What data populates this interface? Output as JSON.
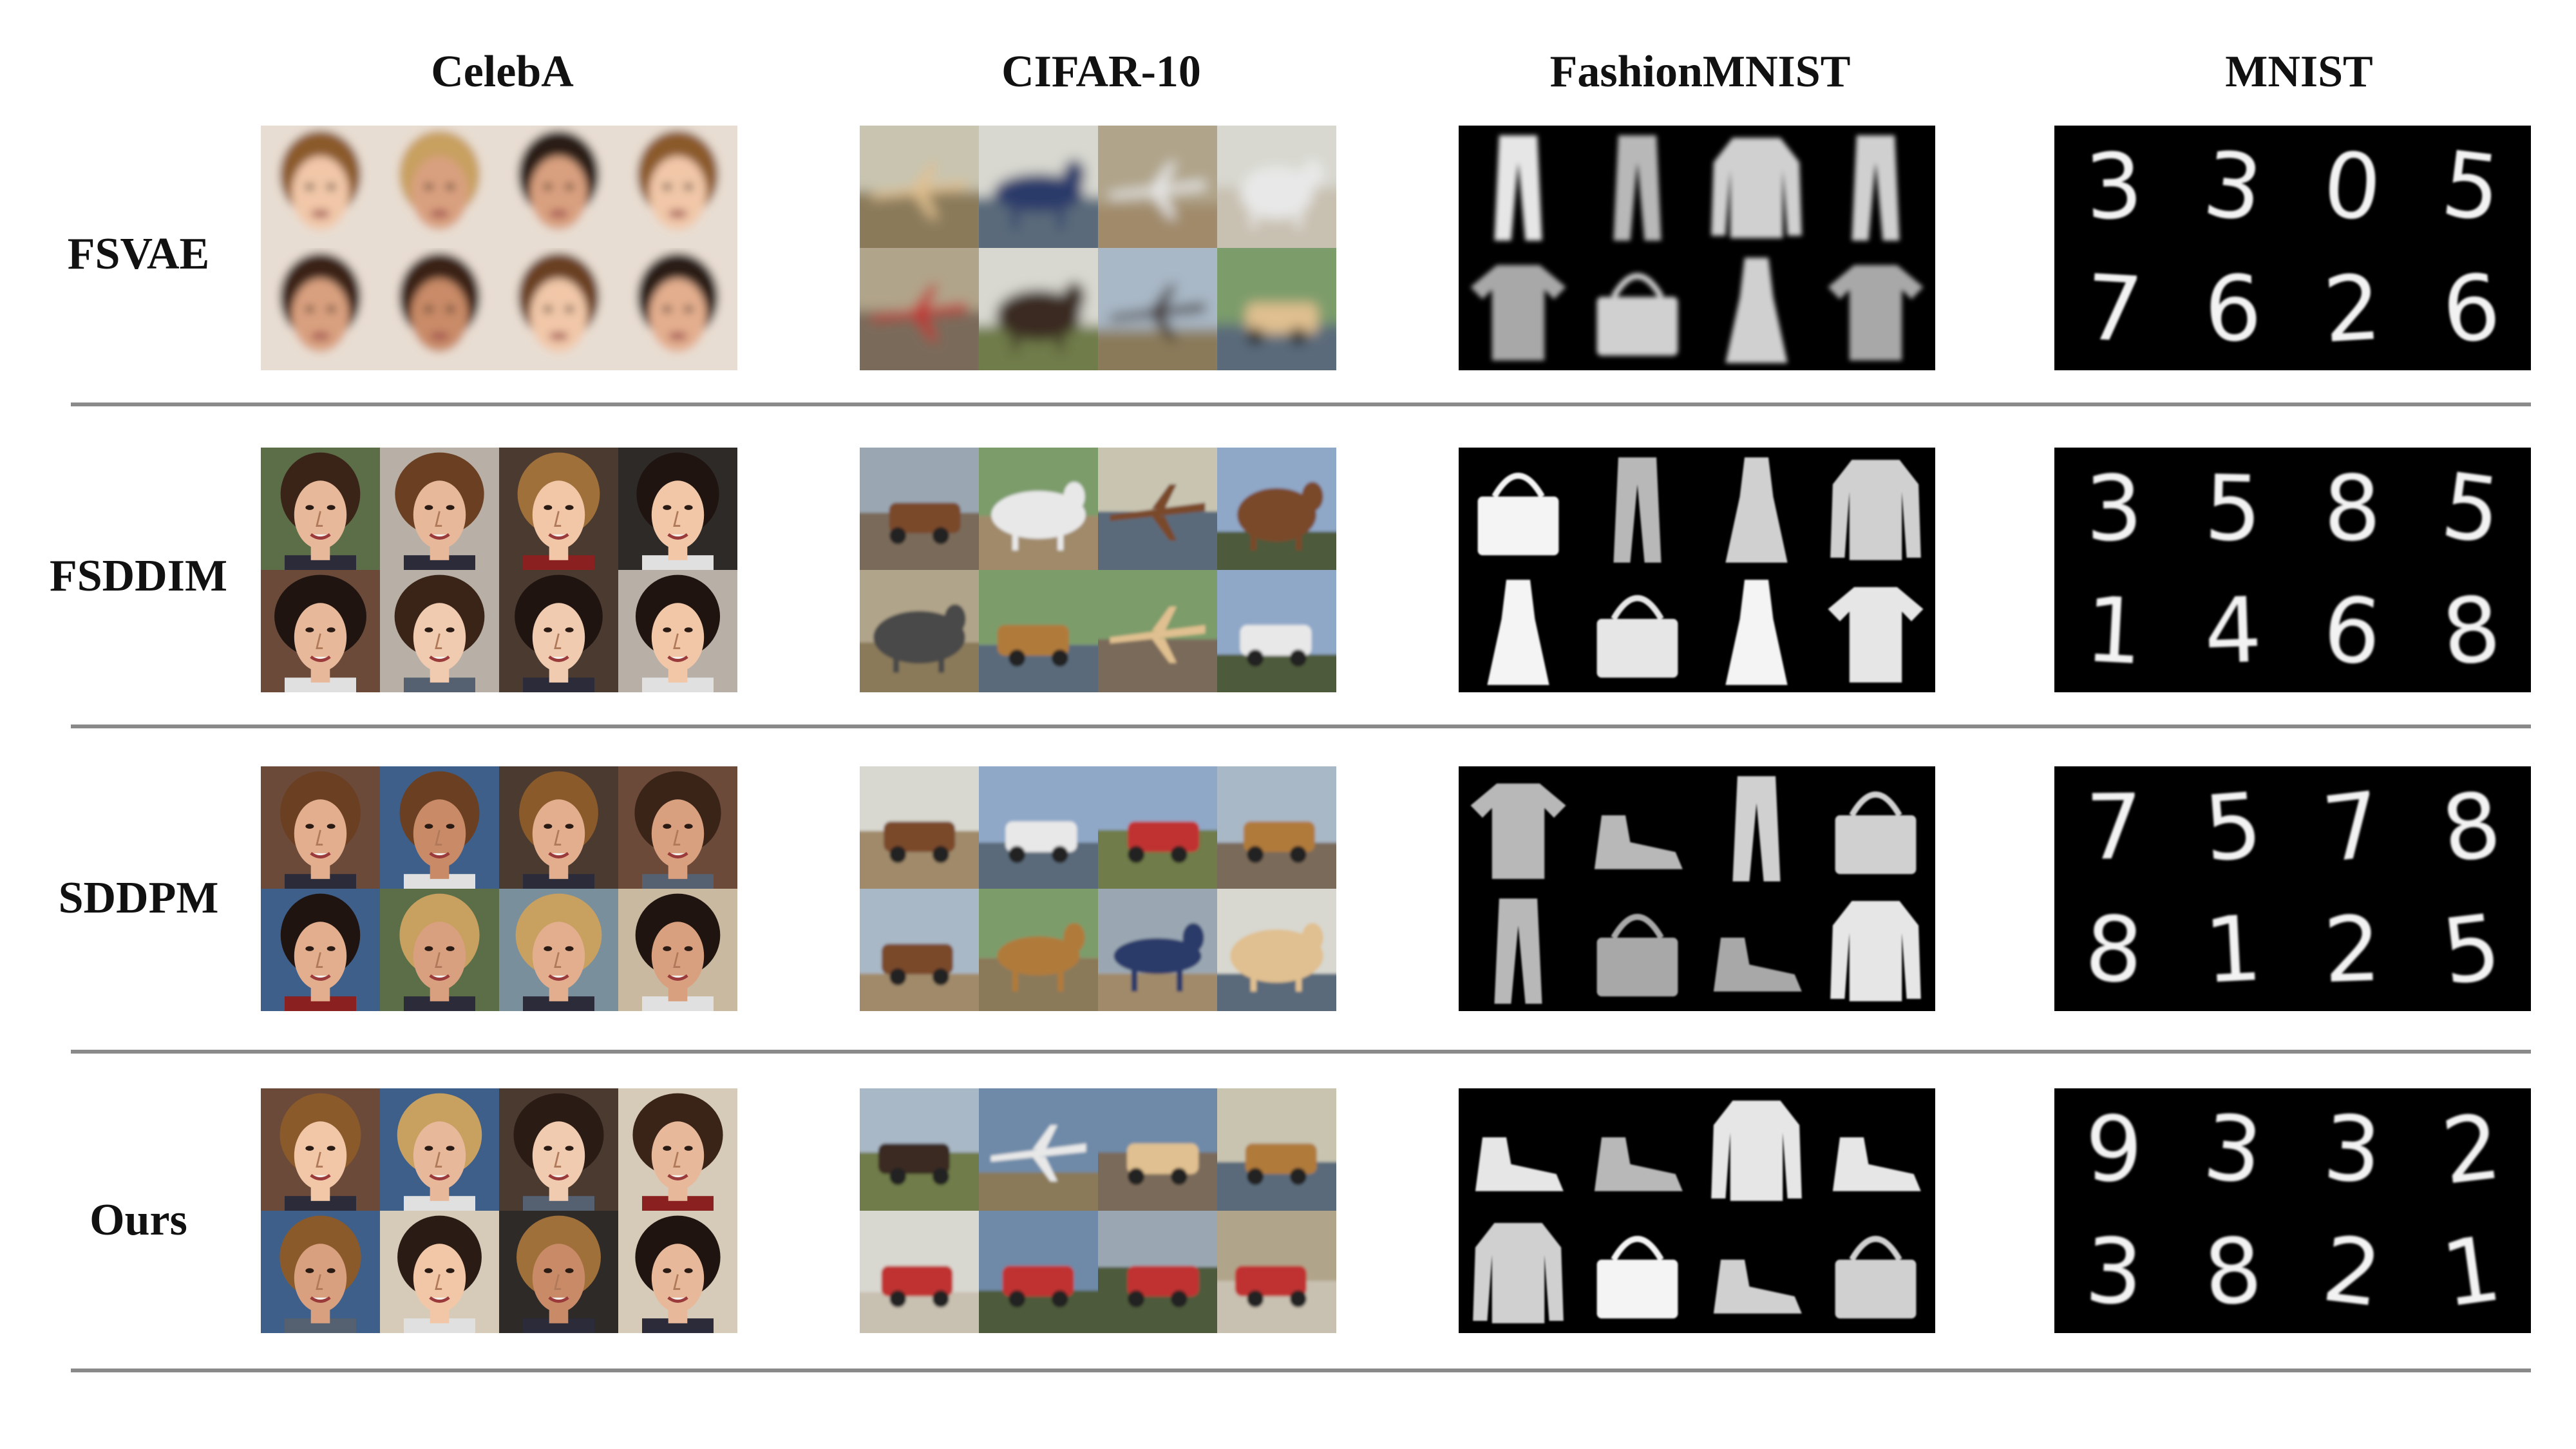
{
  "columns": [
    "CelebA",
    "CIFAR-10",
    "FashionMNIST",
    "MNIST"
  ],
  "rows": [
    "FSVAE",
    "FSDDIM",
    "SDDPM",
    "Ours"
  ],
  "mnist_digits": {
    "FSVAE": [
      "3",
      "3",
      "0",
      "5",
      "7",
      "6",
      "2",
      "6"
    ],
    "FSDDIM": [
      "3",
      "5",
      "8",
      "5",
      "1",
      "4",
      "6",
      "8"
    ],
    "SDDPM": [
      "7",
      "5",
      "7",
      "8",
      "8",
      "1",
      "2",
      "5"
    ],
    "Ours": [
      "9",
      "3",
      "3",
      "2",
      "3",
      "8",
      "2",
      "1"
    ]
  },
  "colors": {
    "divider": "#8a8a8a",
    "mnist_background": "#000000",
    "fashion_background": "#000000"
  }
}
